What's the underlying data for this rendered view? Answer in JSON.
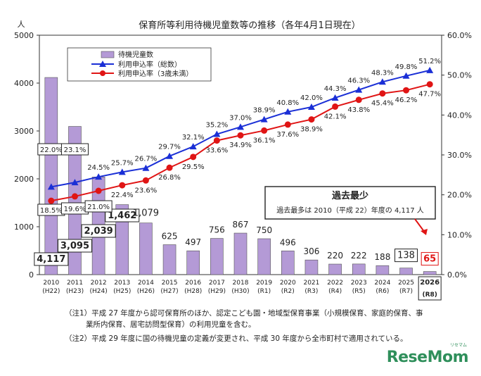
{
  "chart_data": {
    "type": "bar",
    "title": "保育所等利用待機児童数等の推移（各年4月1日現在）",
    "left_unit": "人",
    "y_left_ticks": [
      "0",
      "1000",
      "2000",
      "3000",
      "4000",
      "5000"
    ],
    "y_right_ticks": [
      "0.0%",
      "10.0%",
      "20.0%",
      "30.0%",
      "40.0%",
      "50.0%",
      "60.0%"
    ],
    "ylim_left": [
      0,
      5000
    ],
    "ylim_right": [
      0,
      60
    ],
    "categories": [
      "2010",
      "2011",
      "2012",
      "2013",
      "2014",
      "2015",
      "2016",
      "2017",
      "2018",
      "2019",
      "2020",
      "2021",
      "2022",
      "2023",
      "2024",
      "2025",
      "2026"
    ],
    "category_sublabels": [
      "(H22)",
      "(H23)",
      "(H24)",
      "(H25)",
      "(H26)",
      "(H27)",
      "(H28)",
      "(H29)",
      "(H30)",
      "(R1)",
      "(R2)",
      "(R3)",
      "(R4)",
      "(R5)",
      "(R6)",
      "(R7)",
      "(R8)"
    ],
    "series": [
      {
        "name": "待機児童数",
        "kind": "bar",
        "axis": "left",
        "color": "#b49ad6",
        "values": [
          4117,
          3095,
          2039,
          1462,
          1079,
          625,
          497,
          756,
          867,
          750,
          496,
          306,
          220,
          222,
          188,
          138,
          65
        ],
        "labels": [
          "4,117",
          "3,095",
          "2,039",
          "1,462",
          "1,079",
          "625",
          "497",
          "756",
          "867",
          "750",
          "496",
          "306",
          "220",
          "222",
          "188",
          "138",
          "65"
        ]
      },
      {
        "name": "利用申込率（総数）",
        "kind": "line",
        "axis": "right",
        "color": "#1a2fd6",
        "marker": "triangle",
        "values": [
          22.0,
          23.1,
          24.5,
          25.7,
          26.7,
          29.7,
          32.1,
          35.2,
          37.0,
          38.9,
          40.8,
          42.0,
          44.3,
          46.3,
          48.3,
          49.8,
          51.2
        ],
        "labels": [
          "22.0%",
          "23.1%",
          "24.5%",
          "25.7%",
          "26.7%",
          "29.7%",
          "32.1%",
          "35.2%",
          "37.0%",
          "38.9%",
          "40.8%",
          "42.0%",
          "44.3%",
          "46.3%",
          "48.3%",
          "49.8%",
          "51.2%"
        ]
      },
      {
        "name": "利用申込率（3歳未満）",
        "kind": "line",
        "axis": "right",
        "color": "#e01515",
        "marker": "circle",
        "values": [
          18.5,
          19.6,
          21.0,
          22.4,
          23.6,
          26.8,
          29.5,
          33.6,
          34.9,
          36.1,
          37.6,
          38.9,
          42.1,
          43.8,
          45.4,
          46.2,
          47.7
        ],
        "labels": [
          "18.5%",
          "19.6%",
          "21.0%",
          "22.4%",
          "23.6%",
          "26.8%",
          "29.5%",
          "33.6%",
          "34.9%",
          "36.1%",
          "37.6%",
          "38.9%",
          "42.1%",
          "43.8%",
          "45.4%",
          "46.2%",
          "47.7%"
        ]
      }
    ],
    "legend_placement": "top-left",
    "annotation": {
      "title": "過去最少",
      "text": "過去最多は 2010（平成 22）年度の 4,117 人"
    },
    "highlight_color": "#e01515",
    "grid": false
  },
  "notes": {
    "note1_line1": "（注1）平成 27 年度から認可保育所のほか、認定こども園・地域型保育事業（小規模保育、家庭的保育、事",
    "note1_line2": "業所内保育、居宅訪問型保育）の利用児童を含む。",
    "note2": "（注2）平成 29 年度に国の待機児童の定義が変更され、平成 30 年度から全市町村で適用されている。"
  },
  "logo": {
    "text": "ReseMom",
    "sub": "リセマム"
  }
}
